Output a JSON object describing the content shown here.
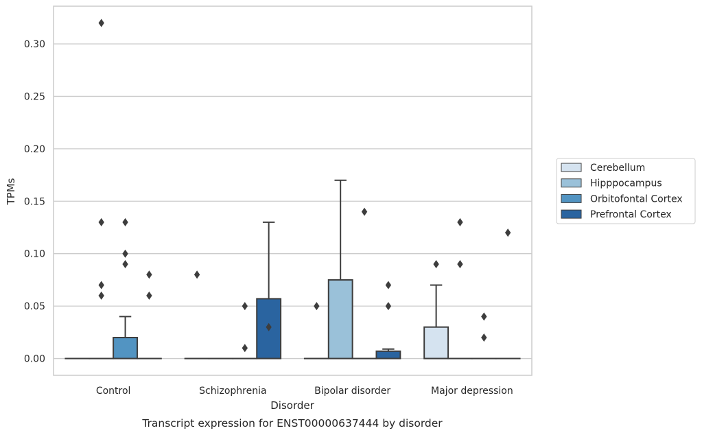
{
  "chart_data": {
    "type": "box",
    "caption": "Transcript expression for ENST00000637444 by disorder",
    "xlabel": "Disorder",
    "ylabel": "TPMs",
    "ylim": [
      -0.016,
      0.336
    ],
    "yticks": [
      0.0,
      0.05,
      0.1,
      0.15,
      0.2,
      0.25,
      0.3
    ],
    "ytick_labels": [
      "0.00",
      "0.05",
      "0.10",
      "0.15",
      "0.20",
      "0.25",
      "0.30"
    ],
    "grid": "horizontal",
    "legend_position": "right",
    "categories": [
      "Control",
      "Schizophrenia",
      "Bipolar disorder",
      "Major depression"
    ],
    "series": [
      {
        "name": "Cerebellum",
        "color": "#d5e3f0",
        "boxes": [
          {
            "q1": 0,
            "median": 0,
            "q3": 0,
            "whislo": 0,
            "whishi": 0,
            "fliers": []
          },
          {
            "q1": 0,
            "median": 0,
            "q3": 0,
            "whislo": 0,
            "whishi": 0,
            "fliers": [
              0.08
            ]
          },
          {
            "q1": 0,
            "median": 0,
            "q3": 0,
            "whislo": 0,
            "whishi": 0,
            "fliers": [
              0.05
            ]
          },
          {
            "q1": 0,
            "median": 0,
            "q3": 0.03,
            "whislo": 0,
            "whishi": 0.07,
            "fliers": [
              0.09
            ]
          }
        ]
      },
      {
        "name": "Hipppocampus",
        "color": "#9ac1d9",
        "boxes": [
          {
            "q1": 0,
            "median": 0,
            "q3": 0,
            "whislo": 0,
            "whishi": 0,
            "fliers": [
              0.07,
              0.06,
              0.13,
              0.32
            ]
          },
          {
            "q1": 0,
            "median": 0,
            "q3": 0,
            "whislo": 0,
            "whishi": 0,
            "fliers": []
          },
          {
            "q1": 0,
            "median": 0,
            "q3": 0.075,
            "whislo": 0,
            "whishi": 0.17,
            "fliers": []
          },
          {
            "q1": 0,
            "median": 0,
            "q3": 0,
            "whislo": 0,
            "whishi": 0,
            "fliers": [
              0.13,
              0.09
            ]
          }
        ]
      },
      {
        "name": "Orbitofontal Cortex",
        "color": "#5294c2",
        "boxes": [
          {
            "q1": 0,
            "median": 0,
            "q3": 0.02,
            "whislo": 0,
            "whishi": 0.04,
            "fliers": [
              0.13,
              0.1,
              0.09
            ]
          },
          {
            "q1": 0,
            "median": 0,
            "q3": 0,
            "whislo": 0,
            "whishi": 0,
            "fliers": [
              0.05,
              0.01
            ]
          },
          {
            "q1": 0,
            "median": 0,
            "q3": 0,
            "whislo": 0,
            "whishi": 0,
            "fliers": [
              0.14
            ]
          },
          {
            "q1": 0,
            "median": 0,
            "q3": 0,
            "whislo": 0,
            "whishi": 0,
            "fliers": [
              0.04,
              0.02
            ]
          }
        ]
      },
      {
        "name": "Prefrontal Cortex",
        "color": "#2a64a0",
        "boxes": [
          {
            "q1": 0,
            "median": 0,
            "q3": 0,
            "whislo": 0,
            "whishi": 0,
            "fliers": [
              0.08,
              0.06
            ]
          },
          {
            "q1": 0,
            "median": 0,
            "q3": 0.057,
            "whislo": 0,
            "whishi": 0.13,
            "fliers": [
              0.03
            ]
          },
          {
            "q1": 0,
            "median": 0,
            "q3": 0.007,
            "whislo": 0,
            "whishi": 0.009,
            "fliers": [
              0.07,
              0.05
            ]
          },
          {
            "q1": 0,
            "median": 0,
            "q3": 0,
            "whislo": 0,
            "whishi": 0,
            "fliers": [
              0.12
            ]
          }
        ]
      }
    ]
  }
}
